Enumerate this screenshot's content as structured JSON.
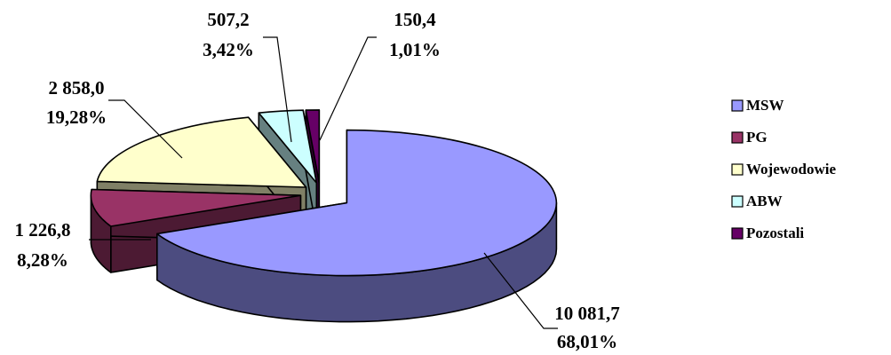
{
  "chart_data": {
    "type": "pie",
    "title": "",
    "categories": [
      "MSW",
      "PG",
      "Wojewodowie",
      "ABW",
      "Pozostali"
    ],
    "values": [
      10081.7,
      1226.8,
      2858.0,
      507.2,
      150.4
    ],
    "value_labels": [
      "10 081,7",
      "1 226,8",
      "2 858,0",
      "507,2",
      "150,4"
    ],
    "percent_labels": [
      "68,01%",
      "8,28%",
      "19,28%",
      "3,42%",
      "1,01%"
    ],
    "colors": [
      "#9999ff",
      "#993366",
      "#ffffcc",
      "#ccffff",
      "#660066"
    ],
    "side_colors": [
      "#4c4c80",
      "#4c1a33",
      "#808066",
      "#668080",
      "#330033"
    ],
    "exploded": true,
    "three_d": true,
    "legend_position": "right"
  }
}
